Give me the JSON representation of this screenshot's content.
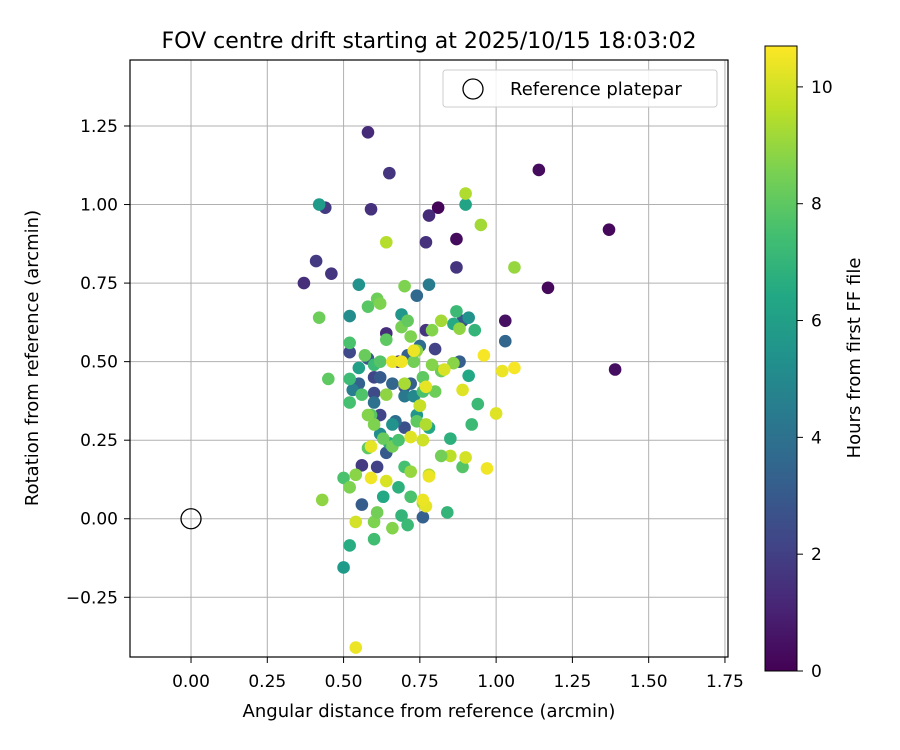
{
  "chart_data": {
    "type": "scatter",
    "title": "FOV centre drift starting at 2025/10/15 18:03:02",
    "xlabel": "Angular distance from reference (arcmin)",
    "ylabel": "Rotation from reference (arcmin)",
    "xlim": [
      -0.2,
      1.76
    ],
    "ylim": [
      -0.44,
      1.46
    ],
    "xticks": [
      "0.00",
      "0.25",
      "0.50",
      "0.75",
      "1.00",
      "1.25",
      "1.50",
      "1.75"
    ],
    "xtick_values": [
      0,
      0.25,
      0.5,
      0.75,
      1.0,
      1.25,
      1.5,
      1.75
    ],
    "yticks": [
      "−0.25",
      "0.00",
      "0.25",
      "0.50",
      "0.75",
      "1.00",
      "1.25"
    ],
    "ytick_values": [
      -0.25,
      0,
      0.25,
      0.5,
      0.75,
      1.0,
      1.25
    ],
    "grid": true,
    "legend": {
      "position": "top-right",
      "entries": [
        "Reference platepar"
      ]
    },
    "reference_point": {
      "x": 0.0,
      "y": 0.0
    },
    "colorbar": {
      "label": "Hours from first FF file",
      "colormap": "viridis",
      "range": [
        0,
        10.7
      ],
      "ticks": [
        "0",
        "2",
        "4",
        "6",
        "8",
        "10"
      ],
      "tick_values": [
        0,
        2,
        4,
        6,
        8,
        10
      ]
    },
    "colormap_stops": [
      "#440154",
      "#482475",
      "#414487",
      "#355f8d",
      "#2a788e",
      "#21918c",
      "#22a884",
      "#44bf70",
      "#7ad151",
      "#bddf26",
      "#fde725"
    ],
    "points": [
      [
        0.58,
        1.23,
        1.3
      ],
      [
        0.65,
        1.1,
        1.6
      ],
      [
        1.14,
        1.11,
        0.3
      ],
      [
        0.81,
        0.99,
        0.1
      ],
      [
        0.59,
        0.985,
        1.5
      ],
      [
        0.78,
        0.965,
        1.3
      ],
      [
        0.87,
        0.89,
        0.3
      ],
      [
        0.77,
        0.88,
        1.5
      ],
      [
        0.44,
        0.99,
        1.8
      ],
      [
        0.41,
        0.82,
        1.8
      ],
      [
        0.46,
        0.78,
        1.6
      ],
      [
        0.37,
        0.75,
        1.4
      ],
      [
        0.87,
        0.8,
        1.6
      ],
      [
        1.37,
        0.92,
        0.2
      ],
      [
        1.17,
        0.735,
        0.2
      ],
      [
        1.39,
        0.475,
        0.4
      ],
      [
        1.03,
        0.63,
        0.5
      ],
      [
        0.89,
        0.63,
        2.8
      ],
      [
        0.8,
        0.54,
        2.1
      ],
      [
        1.03,
        0.565,
        3.5
      ],
      [
        0.64,
        0.59,
        1.4
      ],
      [
        0.52,
        0.53,
        2.3
      ],
      [
        0.6,
        0.45,
        2.2
      ],
      [
        0.6,
        0.4,
        2.4
      ],
      [
        0.7,
        0.42,
        2.8
      ],
      [
        0.66,
        0.43,
        3.5
      ],
      [
        0.71,
        0.52,
        3.3
      ],
      [
        0.75,
        0.55,
        3.8
      ],
      [
        0.74,
        0.71,
        3.6
      ],
      [
        0.88,
        0.5,
        3.2
      ],
      [
        0.62,
        0.33,
        2.2
      ],
      [
        0.7,
        0.29,
        2.6
      ],
      [
        0.64,
        0.21,
        3.0
      ],
      [
        0.67,
        0.31,
        3.8
      ],
      [
        0.56,
        0.17,
        1.8
      ],
      [
        0.61,
        0.165,
        2.1
      ],
      [
        0.56,
        0.045,
        3.1
      ],
      [
        0.76,
        0.005,
        3.3
      ],
      [
        0.68,
        0.5,
        1.7
      ],
      [
        0.6,
        0.37,
        4.0
      ],
      [
        0.7,
        0.39,
        4.3
      ],
      [
        0.62,
        0.45,
        3.0
      ],
      [
        0.55,
        0.43,
        3.3
      ],
      [
        0.53,
        0.41,
        4.5
      ],
      [
        0.58,
        0.51,
        2.9
      ],
      [
        0.77,
        0.6,
        1.6
      ],
      [
        0.72,
        0.43,
        3.2
      ],
      [
        0.42,
        1.0,
        5.8
      ],
      [
        0.9,
        1.0,
        6.2
      ],
      [
        0.78,
        0.745,
        4.4
      ],
      [
        0.55,
        0.745,
        5.4
      ],
      [
        0.52,
        0.645,
        5.2
      ],
      [
        0.69,
        0.65,
        5.6
      ],
      [
        0.86,
        0.62,
        6.5
      ],
      [
        0.87,
        0.66,
        7.2
      ],
      [
        0.91,
        0.64,
        5.4
      ],
      [
        0.93,
        0.6,
        7.0
      ],
      [
        0.91,
        0.455,
        6.4
      ],
      [
        0.94,
        0.365,
        7.2
      ],
      [
        0.92,
        0.3,
        7.2
      ],
      [
        0.89,
        0.165,
        7.8
      ],
      [
        0.85,
        0.255,
        6.8
      ],
      [
        0.84,
        0.02,
        7.0
      ],
      [
        0.62,
        0.27,
        5.2
      ],
      [
        0.66,
        0.3,
        5.4
      ],
      [
        0.73,
        0.39,
        5.0
      ],
      [
        0.74,
        0.33,
        5.6
      ],
      [
        0.78,
        0.29,
        6.4
      ],
      [
        0.65,
        0.24,
        6.7
      ],
      [
        0.63,
        0.07,
        6.4
      ],
      [
        0.68,
        0.1,
        6.8
      ],
      [
        0.69,
        0.01,
        7.0
      ],
      [
        0.71,
        -0.02,
        7.2
      ],
      [
        0.72,
        0.07,
        7.6
      ],
      [
        0.7,
        0.165,
        7.5
      ],
      [
        0.5,
        -0.155,
        5.8
      ],
      [
        0.52,
        -0.085,
        6.6
      ],
      [
        0.6,
        -0.065,
        7.4
      ],
      [
        0.5,
        0.13,
        7.6
      ],
      [
        0.55,
        0.48,
        6.0
      ],
      [
        0.6,
        0.49,
        7.2
      ],
      [
        0.62,
        0.5,
        7.8
      ],
      [
        0.64,
        0.57,
        8.0
      ],
      [
        0.57,
        0.52,
        8.2
      ],
      [
        0.52,
        0.56,
        7.6
      ],
      [
        0.52,
        0.445,
        7.3
      ],
      [
        0.52,
        0.37,
        7.5
      ],
      [
        0.56,
        0.395,
        7.7
      ],
      [
        0.59,
        0.33,
        7.9
      ],
      [
        0.63,
        0.255,
        8.2
      ],
      [
        0.66,
        0.23,
        8.4
      ],
      [
        0.6,
        0.3,
        8.6
      ],
      [
        0.58,
        0.225,
        8.0
      ],
      [
        0.68,
        0.25,
        7.6
      ],
      [
        0.74,
        0.31,
        8.0
      ],
      [
        0.75,
        0.36,
        8.2
      ],
      [
        0.76,
        0.405,
        7.6
      ],
      [
        0.8,
        0.405,
        8.3
      ],
      [
        0.82,
        0.47,
        8.2
      ],
      [
        0.79,
        0.49,
        8.7
      ],
      [
        0.76,
        0.45,
        8.0
      ],
      [
        0.73,
        0.5,
        8.4
      ],
      [
        0.74,
        0.535,
        8.9
      ],
      [
        0.72,
        0.58,
        8.6
      ],
      [
        0.69,
        0.61,
        8.5
      ],
      [
        0.71,
        0.63,
        8.1
      ],
      [
        0.79,
        0.6,
        8.7
      ],
      [
        0.82,
        0.63,
        9.2
      ],
      [
        0.88,
        0.605,
        8.9
      ],
      [
        0.86,
        0.495,
        8.8
      ],
      [
        0.61,
        0.7,
        8.3
      ],
      [
        0.58,
        0.675,
        7.9
      ],
      [
        0.62,
        0.685,
        8.6
      ],
      [
        0.7,
        0.74,
        8.6
      ],
      [
        0.42,
        0.64,
        8.3
      ],
      [
        0.45,
        0.445,
        8.0
      ],
      [
        0.43,
        0.06,
        8.9
      ],
      [
        0.52,
        0.1,
        8.6
      ],
      [
        0.6,
        -0.01,
        8.6
      ],
      [
        0.54,
        0.14,
        8.8
      ],
      [
        0.58,
        0.33,
        8.7
      ],
      [
        0.64,
        0.395,
        8.9
      ],
      [
        0.7,
        0.43,
        9.3
      ],
      [
        0.75,
        0.36,
        9.8
      ],
      [
        0.77,
        0.3,
        9.4
      ],
      [
        0.72,
        0.15,
        9.0
      ],
      [
        0.76,
        0.05,
        9.2
      ],
      [
        0.78,
        0.14,
        9.4
      ],
      [
        0.76,
        0.25,
        9.9
      ],
      [
        0.64,
        0.88,
        9.5
      ],
      [
        0.9,
        1.035,
        9.4
      ],
      [
        0.95,
        0.935,
        9.2
      ],
      [
        1.06,
        0.8,
        9.0
      ],
      [
        0.85,
        0.2,
        9.6
      ],
      [
        0.82,
        0.2,
        8.4
      ],
      [
        0.66,
        0.5,
        10.4
      ],
      [
        0.73,
        0.535,
        10.4
      ],
      [
        0.77,
        0.42,
        10.3
      ],
      [
        0.83,
        0.475,
        10.1
      ],
      [
        0.89,
        0.41,
        10.2
      ],
      [
        0.96,
        0.52,
        10.6
      ],
      [
        1.02,
        0.47,
        10.4
      ],
      [
        1.06,
        0.48,
        10.6
      ],
      [
        0.9,
        0.195,
        10.0
      ],
      [
        0.97,
        0.16,
        10.5
      ],
      [
        1.0,
        0.335,
        10.2
      ],
      [
        0.78,
        0.135,
        10.4
      ],
      [
        0.72,
        0.26,
        10.2
      ],
      [
        0.64,
        0.12,
        10.1
      ],
      [
        0.59,
        0.13,
        10.5
      ],
      [
        0.59,
        0.23,
        10.3
      ],
      [
        0.77,
        0.04,
        10.3
      ],
      [
        0.54,
        -0.01,
        10.0
      ],
      [
        0.54,
        -0.41,
        10.4
      ],
      [
        0.66,
        -0.03,
        8.7
      ],
      [
        0.61,
        0.02,
        8.4
      ],
      [
        0.69,
        0.5,
        10.5
      ],
      [
        0.76,
        0.06,
        10.4
      ]
    ]
  }
}
